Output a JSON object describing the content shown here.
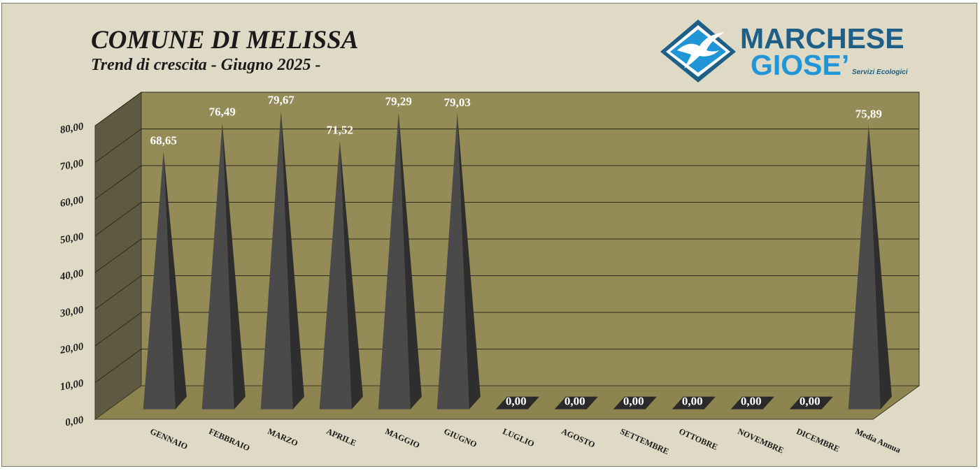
{
  "header": {
    "title": "COMUNE DI MELISSA",
    "subtitle": "Trend di crescita - Giugno 2025 -"
  },
  "logo": {
    "line1": "MARCHESE",
    "line2": "GIOSE’",
    "tagline": "Servizi Ecologici",
    "icon": "seagull-diamond-icon",
    "colors": {
      "dark": "#1d5f86",
      "light": "#2196d6"
    }
  },
  "colors": {
    "background": "#dedac5",
    "plot_back": "#948b56",
    "plot_floor": "#8d8450",
    "plot_side": "#5e5940",
    "pyramid": "#4a4a4a"
  },
  "chart_data": {
    "type": "bar",
    "style": "3d-pyramid",
    "title": "COMUNE DI MELISSA",
    "subtitle": "Trend di crescita - Giugno 2025 -",
    "categories": [
      "GENNAIO",
      "FEBBRAIO",
      "MARZO",
      "APRILE",
      "MAGGIO",
      "GIUGNO",
      "LUGLIO",
      "AGOSTO",
      "SETTEMBRE",
      "OTTOBRE",
      "NOVEMBRE",
      "DICEMBRE",
      "Media Annua"
    ],
    "values": [
      68.65,
      76.49,
      79.67,
      71.52,
      79.29,
      79.03,
      0,
      0,
      0,
      0,
      0,
      0,
      75.89
    ],
    "data_labels": [
      "68,65",
      "76,49",
      "79,67",
      "71,52",
      "79,29",
      "79,03",
      "0,00",
      "0,00",
      "0,00",
      "0,00",
      "0,00",
      "0,00",
      "75,89"
    ],
    "yticks": [
      0,
      10,
      20,
      30,
      40,
      50,
      60,
      70,
      80
    ],
    "ytick_labels": [
      "0,00",
      "10,00",
      "20,00",
      "30,00",
      "40,00",
      "50,00",
      "60,00",
      "70,00",
      "80,00"
    ],
    "ylim": [
      0,
      80
    ],
    "grid": true,
    "legend": "none"
  }
}
